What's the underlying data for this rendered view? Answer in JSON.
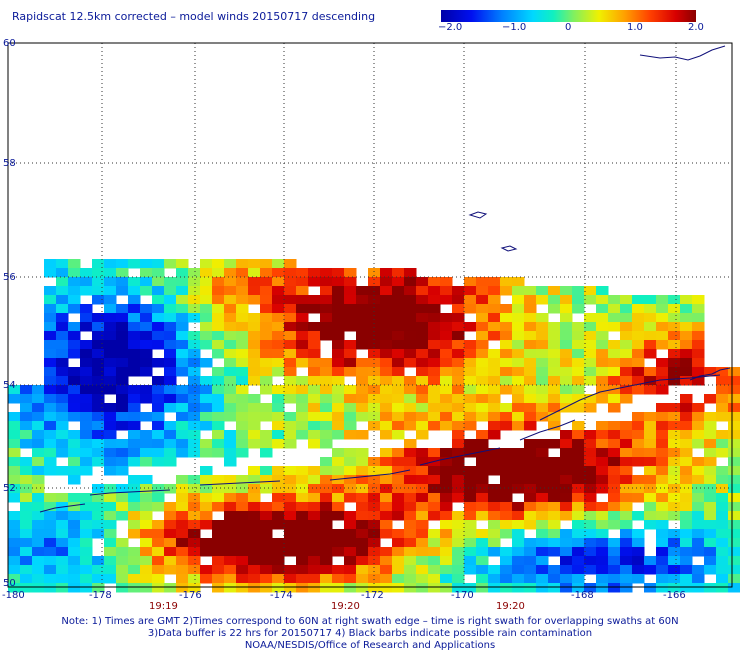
{
  "title": "Rapidscat 12.5km corrected – model winds 20150717 descending",
  "colorbar": {
    "labels": [
      "−2.0",
      "−1.0",
      "0",
      "1.0",
      "2.0"
    ],
    "values": [
      -2.0,
      -1.0,
      0,
      1.0,
      2.0
    ],
    "range": [
      -2.0,
      2.0
    ]
  },
  "map_data": {
    "type": "heatmap",
    "x_range": [
      -180,
      -165
    ],
    "y_range": [
      50,
      60
    ],
    "lon_labels": [
      "-180",
      "-178",
      "-176",
      "-174",
      "-172",
      "-170",
      "-168",
      "-166"
    ],
    "lon_values": [
      -180,
      -178,
      -176,
      -174,
      -172,
      -170,
      -168,
      -166
    ],
    "lat_labels": [
      "60",
      "58",
      "56",
      "54",
      "52",
      "50"
    ],
    "lat_values": [
      60,
      58,
      56,
      54,
      52,
      50
    ],
    "grid": true,
    "time_labels": [
      {
        "lon": -175.6,
        "text": "19:19"
      },
      {
        "lon": -172.3,
        "text": "19:20"
      },
      {
        "lon": -169.4,
        "text": "19:20"
      }
    ]
  },
  "notes": [
    "Note: 1) Times are GMT 2)Times correspond to 60N at right swath edge – time is right swath for overlapping swaths at 60N",
    "3)Data buffer is 22 hrs for 20150717 4) Black barbs indicate possible rain contamination",
    "NOAA/NESDIS/Office of Research and Applications"
  ]
}
